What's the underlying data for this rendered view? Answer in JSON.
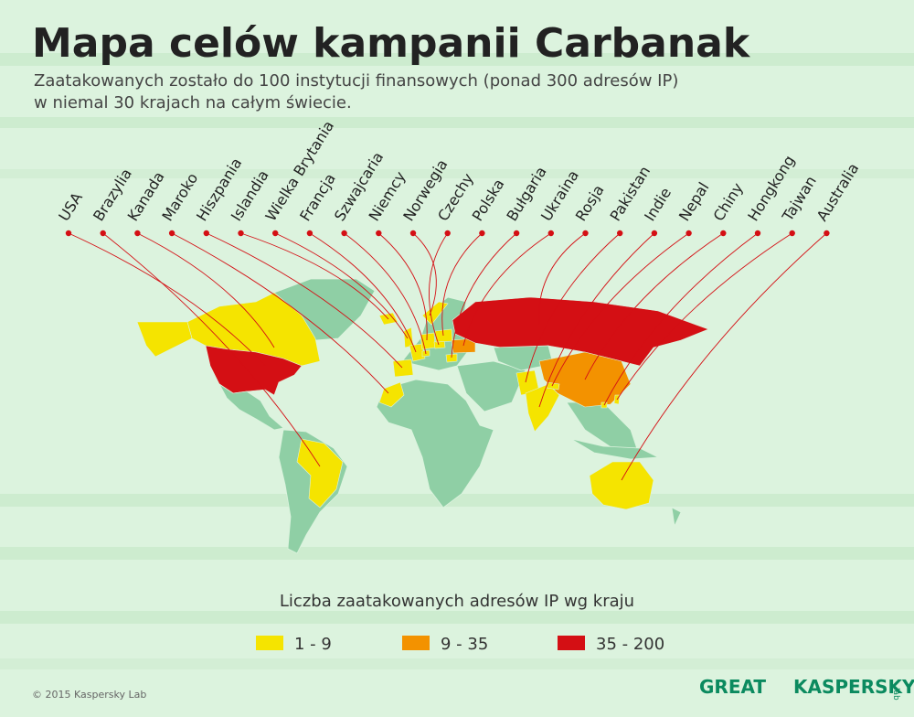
{
  "header": {
    "title": "Mapa celów kampanii Carbanak",
    "subtitle": [
      "Zaatakowanych zostało do 100 instytucji finansowych (ponad 300 adresów IP)",
      "w niemal 30 krajach na całym świecie."
    ]
  },
  "countries": [
    "USA",
    "Brazylia",
    "Kanada",
    "Maroko",
    "Hiszpania",
    "Islandia",
    "Wielka Brytania",
    "Francja",
    "Szwajcaria",
    "Niemcy",
    "Norwegia",
    "Czechy",
    "Polska",
    "Bułgaria",
    "Ukraina",
    "Rosja",
    "Pakistan",
    "Indie",
    "Nepal",
    "Chiny",
    "Hongkong",
    "Tajwan",
    "Australia"
  ],
  "legend": {
    "title": "Liczba zaatakowanych adresów IP wg kraju",
    "items": [
      {
        "label": "1 - 9",
        "color": "#f5e400"
      },
      {
        "label": "9 - 35",
        "color": "#f39200"
      },
      {
        "label": "35 - 200",
        "color": "#d40f14"
      }
    ]
  },
  "footer": {
    "copyright": "© 2015 Kaspersky Lab",
    "logo_left": "GREAT",
    "logo_right": "KASPERSKY",
    "logo_right_sub": "lab"
  }
}
